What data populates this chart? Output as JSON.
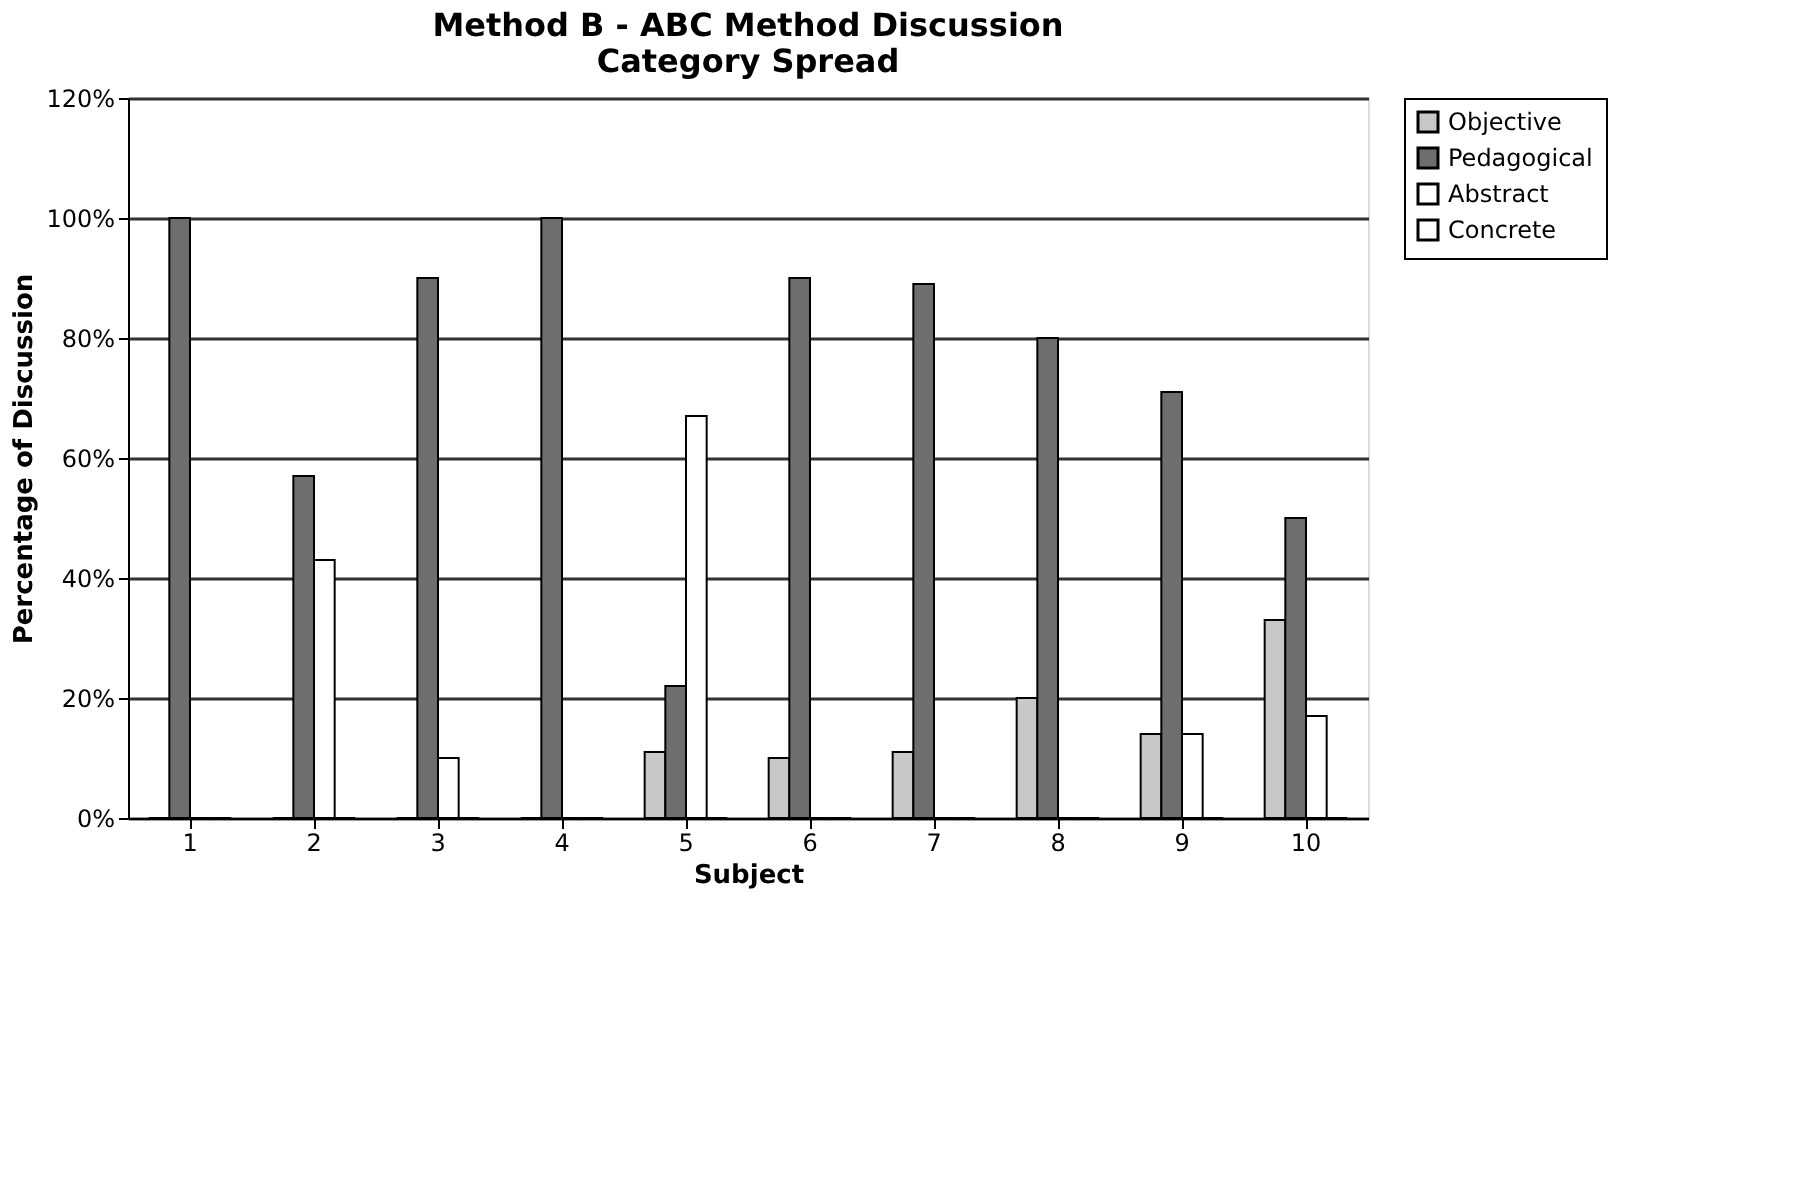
{
  "chart_data": {
    "type": "bar",
    "title": "Method B - ABC Method Discussion Category Spread",
    "xlabel": "Subject",
    "ylabel": "Percentage of Discussion",
    "categories": [
      "1",
      "2",
      "3",
      "4",
      "5",
      "6",
      "7",
      "8",
      "9",
      "10"
    ],
    "series": [
      {
        "name": "Objective",
        "color": "#c8c8c8",
        "values": [
          0,
          0,
          0,
          0,
          11,
          10,
          11,
          20,
          14,
          33
        ]
      },
      {
        "name": "Pedagogical",
        "color": "#6e6e6e",
        "values": [
          100,
          57,
          90,
          100,
          22,
          90,
          89,
          80,
          71,
          50
        ]
      },
      {
        "name": "Abstract",
        "color": "#ffffff",
        "values": [
          0,
          43,
          10,
          0,
          67,
          0,
          0,
          0,
          14,
          17
        ]
      },
      {
        "name": "Concrete",
        "color": "#ffffff",
        "values": [
          0,
          0,
          0,
          0,
          0,
          0,
          0,
          0,
          0,
          0
        ]
      }
    ],
    "ylim": [
      0,
      120
    ],
    "yticks": [
      {
        "value": 0,
        "label": "0%"
      },
      {
        "value": 20,
        "label": "20%"
      },
      {
        "value": 40,
        "label": "40%"
      },
      {
        "value": 60,
        "label": "60%"
      },
      {
        "value": 80,
        "label": "80%"
      },
      {
        "value": 100,
        "label": "100%"
      },
      {
        "value": 120,
        "label": "120%"
      }
    ],
    "grid": "y",
    "legend": "right"
  }
}
